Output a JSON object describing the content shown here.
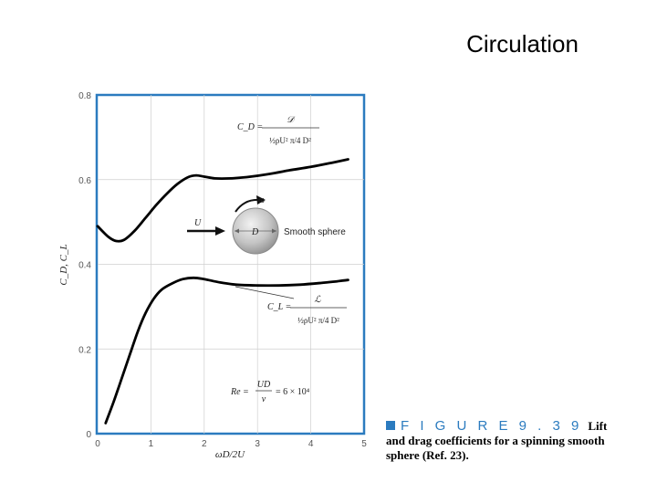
{
  "slide": {
    "title": "Circulation"
  },
  "caption": {
    "figure_label": "F I G U R E   9 . 3 9",
    "text": "Lift and drag coefficients for a spinning smooth sphere (Ref. 23)."
  },
  "colors": {
    "frame": "#2b7bbf",
    "curve": "#000000",
    "sphere": "#b8b8b8"
  },
  "chart_data": {
    "type": "line",
    "xlabel": "ωD/2U",
    "ylabel": "C_D, C_L",
    "xlim": [
      0,
      5
    ],
    "ylim": [
      0,
      0.8
    ],
    "x_ticks": [
      "0",
      "1",
      "2",
      "3",
      "4",
      "5"
    ],
    "y_ticks": [
      "0",
      "0.2",
      "0.4",
      "0.6",
      "0.8"
    ],
    "grid": true,
    "series": [
      {
        "name": "C_D",
        "points": [
          [
            0.0,
            0.49
          ],
          [
            0.2,
            0.465
          ],
          [
            0.35,
            0.455
          ],
          [
            0.5,
            0.458
          ],
          [
            0.7,
            0.48
          ],
          [
            0.9,
            0.51
          ],
          [
            1.1,
            0.54
          ],
          [
            1.3,
            0.567
          ],
          [
            1.5,
            0.59
          ],
          [
            1.7,
            0.606
          ],
          [
            1.85,
            0.61
          ],
          [
            2.0,
            0.607
          ],
          [
            2.2,
            0.603
          ],
          [
            2.5,
            0.603
          ],
          [
            2.8,
            0.606
          ],
          [
            3.2,
            0.613
          ],
          [
            3.6,
            0.622
          ],
          [
            4.0,
            0.63
          ],
          [
            4.4,
            0.64
          ],
          [
            4.7,
            0.648
          ]
        ]
      },
      {
        "name": "C_L",
        "points": [
          [
            0.15,
            0.025
          ],
          [
            0.3,
            0.075
          ],
          [
            0.45,
            0.13
          ],
          [
            0.6,
            0.185
          ],
          [
            0.75,
            0.24
          ],
          [
            0.9,
            0.285
          ],
          [
            1.05,
            0.318
          ],
          [
            1.2,
            0.34
          ],
          [
            1.4,
            0.355
          ],
          [
            1.6,
            0.365
          ],
          [
            1.8,
            0.368
          ],
          [
            2.0,
            0.365
          ],
          [
            2.3,
            0.357
          ],
          [
            2.6,
            0.352
          ],
          [
            3.0,
            0.35
          ],
          [
            3.4,
            0.35
          ],
          [
            3.8,
            0.352
          ],
          [
            4.2,
            0.356
          ],
          [
            4.5,
            0.36
          ],
          [
            4.7,
            0.363
          ]
        ]
      }
    ],
    "annotations": {
      "cd_formula": {
        "lhs": "C_D =",
        "numerator": "𝒟",
        "denominator": "½ρU² π/4 D²"
      },
      "cl_formula": {
        "lhs": "C_L =",
        "numerator": "ℒ",
        "denominator": "½ρU² π/4 D²"
      },
      "inset": {
        "flow_label": "U",
        "spin_label": "ω",
        "sphere_label": "D",
        "sphere_caption": "Smooth sphere"
      },
      "reynolds": {
        "lhs": "Re =",
        "numerator": "UD",
        "denominator": "ν",
        "rhs": "= 6 × 10⁴"
      }
    }
  }
}
